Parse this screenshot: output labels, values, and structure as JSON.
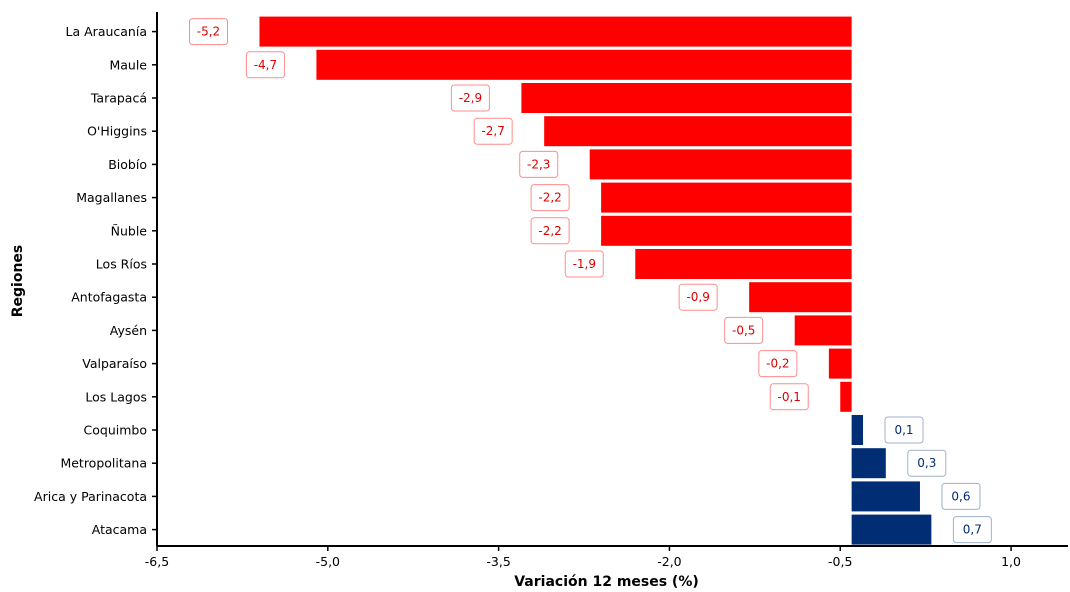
{
  "chart_data": {
    "type": "bar",
    "orientation": "horizontal",
    "title": "",
    "xlabel": "Variación 12 meses (%)",
    "ylabel": "Regiones",
    "categories": [
      "La Araucanía",
      "Maule",
      "Tarapacá",
      "O'Higgins",
      "Biobío",
      "Magallanes",
      "Ñuble",
      "Los Ríos",
      "Antofagasta",
      "Aysén",
      "Valparaíso",
      "Los Lagos",
      "Coquimbo",
      "Metropolitana",
      "Arica y Parinacota",
      "Atacama"
    ],
    "values": [
      -5.2,
      -4.7,
      -2.9,
      -2.7,
      -2.3,
      -2.2,
      -2.2,
      -1.9,
      -0.9,
      -0.5,
      -0.2,
      -0.1,
      0.1,
      0.3,
      0.6,
      0.7
    ],
    "data_labels": [
      "-5,2",
      "-4,7",
      "-2,9",
      "-2,7",
      "-2,3",
      "-2,2",
      "-2,2",
      "-1,9",
      "-0,9",
      "-0,5",
      "-0,2",
      "-0,1",
      "0,1",
      "0,3",
      "0,6",
      "0,7"
    ],
    "xlim": [
      -6.5,
      1.5
    ],
    "x_ticks": [
      -6.5,
      -5.0,
      -3.5,
      -2.0,
      -0.5,
      1.0
    ],
    "x_tick_labels": [
      "-6,5",
      "-5,0",
      "-3,5",
      "-2,0",
      "-0,5",
      "1,0"
    ],
    "grid": false,
    "colors": {
      "negative": "#ff0000",
      "positive": "#002d74"
    }
  }
}
